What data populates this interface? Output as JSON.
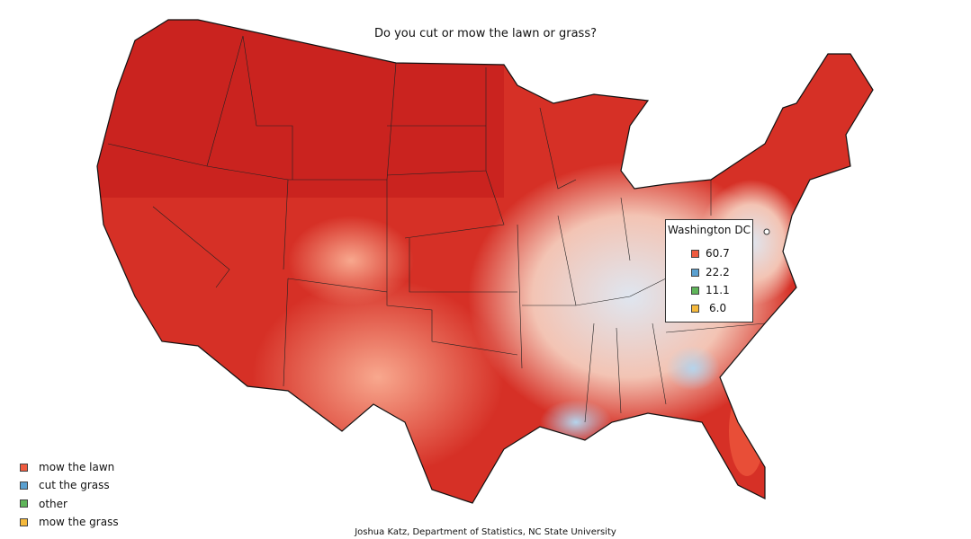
{
  "title": "Do you cut or mow the lawn or grass?",
  "legend": [
    {
      "label": "mow the lawn",
      "color": "#ef5b3f"
    },
    {
      "label": "cut the grass",
      "color": "#5aa0d0"
    },
    {
      "label": "other",
      "color": "#5fb55a"
    },
    {
      "label": "mow the grass",
      "color": "#f5b93c"
    }
  ],
  "tooltip": {
    "location": "Washington DC",
    "values": [
      "60.7",
      "22.2",
      "11.1",
      "6.0"
    ]
  },
  "credit": "Joshua Katz, Department of Statistics, NC State University"
}
